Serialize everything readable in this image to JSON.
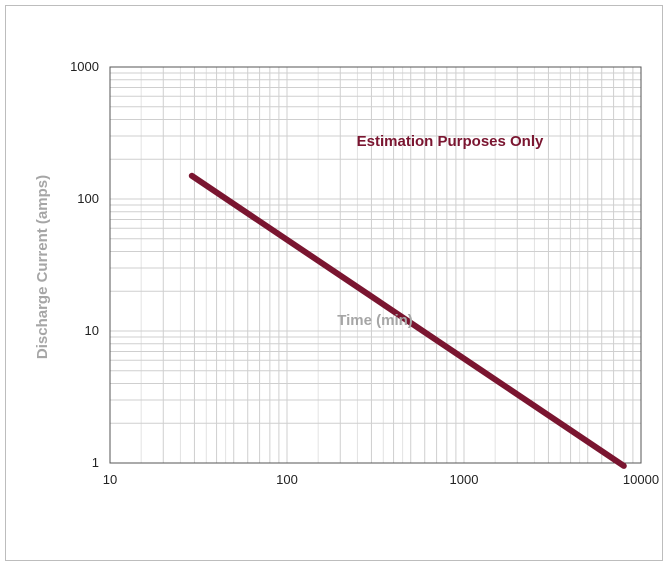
{
  "chart_data": {
    "type": "line",
    "xscale": "log",
    "yscale": "log",
    "xlim": [
      10,
      10000
    ],
    "ylim": [
      1,
      1000
    ],
    "grid": true,
    "xlabel": "Time (min)",
    "ylabel": "Discharge Current (amps)",
    "x_tick_labels": [
      "10",
      "100",
      "1000",
      "10000"
    ],
    "y_tick_labels": [
      "1",
      "10",
      "100",
      "1000"
    ],
    "annotation": "Estimation Purposes Only",
    "line_color": "#7a1530",
    "series": [
      {
        "x": [
          29,
          8000
        ],
        "y": [
          150,
          0.95
        ]
      }
    ]
  }
}
